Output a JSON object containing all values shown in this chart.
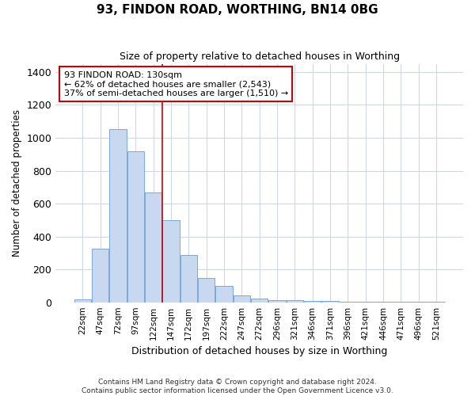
{
  "title": "93, FINDON ROAD, WORTHING, BN14 0BG",
  "subtitle": "Size of property relative to detached houses in Worthing",
  "xlabel": "Distribution of detached houses by size in Worthing",
  "ylabel": "Number of detached properties",
  "bar_labels": [
    "22sqm",
    "47sqm",
    "72sqm",
    "97sqm",
    "122sqm",
    "147sqm",
    "172sqm",
    "197sqm",
    "222sqm",
    "247sqm",
    "272sqm",
    "296sqm",
    "321sqm",
    "346sqm",
    "371sqm",
    "396sqm",
    "421sqm",
    "446sqm",
    "471sqm",
    "496sqm",
    "521sqm"
  ],
  "bar_heights": [
    20,
    325,
    1055,
    920,
    670,
    500,
    285,
    150,
    100,
    42,
    22,
    15,
    15,
    8,
    8,
    3,
    2,
    2,
    2,
    1,
    1
  ],
  "bar_color": "#c8d8f0",
  "bar_edge_color": "#7aa8d8",
  "grid_color": "#d0d8e8",
  "background_color": "#ffffff",
  "annotation_text": "93 FINDON ROAD: 130sqm\n← 62% of detached houses are smaller (2,543)\n37% of semi-detached houses are larger (1,510) →",
  "annotation_box_color": "#ffffff",
  "annotation_border_color": "#cc0000",
  "footer_text": "Contains HM Land Registry data © Crown copyright and database right 2024.\nContains public sector information licensed under the Open Government Licence v3.0.",
  "ylim": [
    0,
    1450
  ],
  "yticks": [
    0,
    200,
    400,
    600,
    800,
    1000,
    1200,
    1400
  ]
}
